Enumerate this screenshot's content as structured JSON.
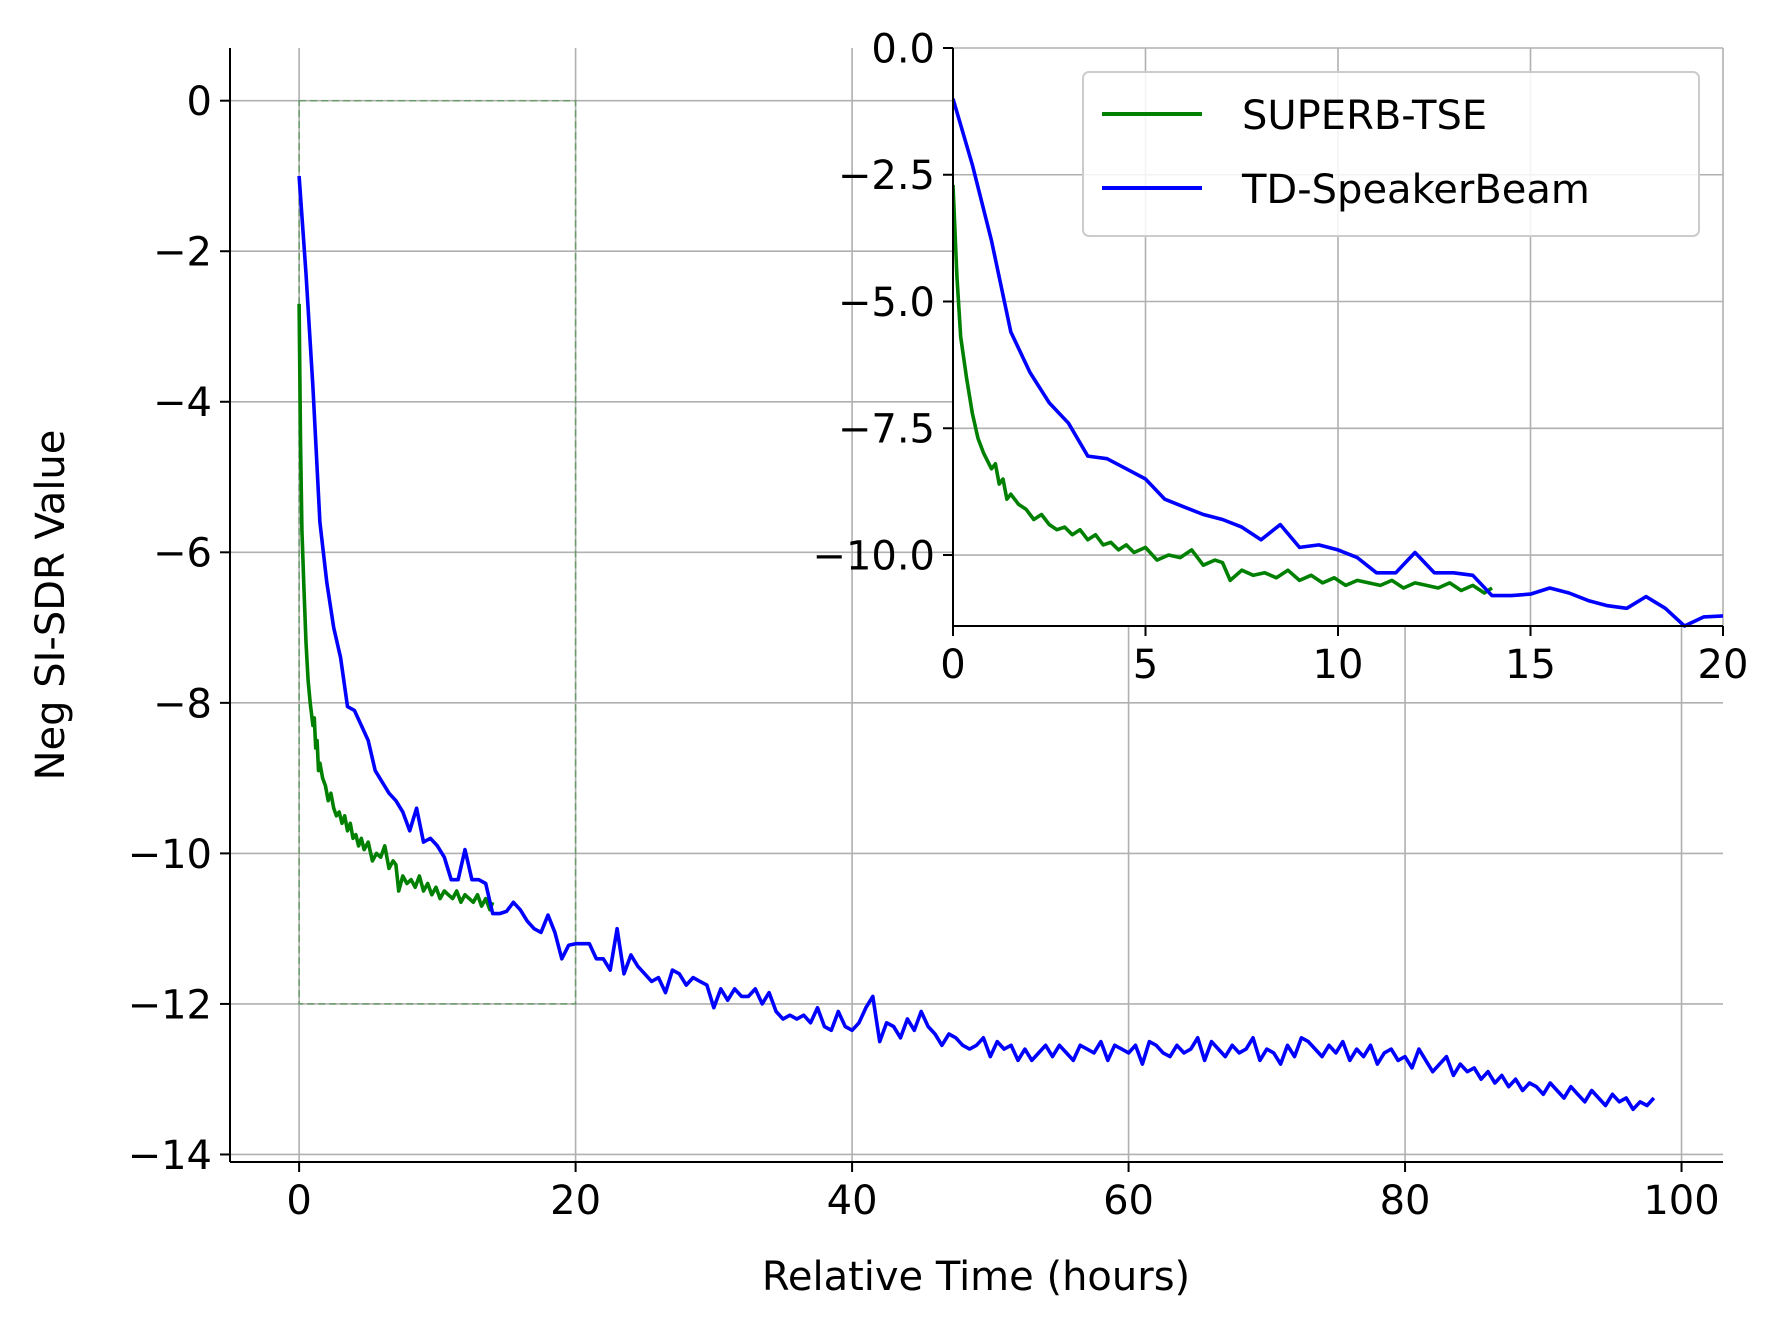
{
  "chart_data": [
    {
      "type": "line",
      "role": "main",
      "xlabel": "Relative Time (hours)",
      "ylabel": "Neg SI-SDR Value",
      "xlim": [
        -5,
        103
      ],
      "ylim": [
        -14.1,
        0.7
      ],
      "xticks": [
        0,
        20,
        40,
        60,
        80,
        100
      ],
      "yticks": [
        0,
        -2,
        -4,
        -6,
        -8,
        -10,
        -12,
        -14
      ],
      "xtick_labels": [
        "0",
        "20",
        "40",
        "60",
        "80",
        "100"
      ],
      "ytick_labels": [
        "0",
        "−2",
        "−4",
        "−6",
        "−8",
        "−10",
        "−12",
        "−14"
      ],
      "grid": true,
      "zoom_box": {
        "x": [
          0,
          20
        ],
        "y": [
          -12,
          0
        ]
      },
      "series": [
        {
          "name": "SUPERB-TSE",
          "color": "#008000",
          "x": [
            0,
            0.1,
            0.2,
            0.35,
            0.5,
            0.65,
            0.8,
            1.0,
            1.1,
            1.2,
            1.3,
            1.4,
            1.5,
            1.7,
            1.9,
            2.1,
            2.3,
            2.5,
            2.7,
            2.9,
            3.1,
            3.3,
            3.5,
            3.7,
            3.9,
            4.1,
            4.3,
            4.5,
            4.7,
            5.0,
            5.3,
            5.6,
            5.9,
            6.2,
            6.5,
            6.8,
            7.0,
            7.2,
            7.5,
            7.8,
            8.1,
            8.4,
            8.7,
            9.0,
            9.3,
            9.6,
            9.9,
            10.2,
            10.5,
            10.8,
            11.1,
            11.4,
            11.7,
            12.0,
            12.3,
            12.6,
            12.9,
            13.2,
            13.5,
            13.8,
            14.0
          ],
          "y": [
            -2.7,
            -4.5,
            -5.7,
            -6.5,
            -7.2,
            -7.7,
            -8.0,
            -8.3,
            -8.2,
            -8.6,
            -8.5,
            -8.9,
            -8.8,
            -9.0,
            -9.1,
            -9.3,
            -9.2,
            -9.4,
            -9.5,
            -9.45,
            -9.6,
            -9.5,
            -9.7,
            -9.6,
            -9.8,
            -9.75,
            -9.9,
            -9.8,
            -9.95,
            -9.85,
            -10.1,
            -10.0,
            -10.05,
            -9.9,
            -10.2,
            -10.1,
            -10.15,
            -10.5,
            -10.3,
            -10.4,
            -10.35,
            -10.45,
            -10.3,
            -10.5,
            -10.4,
            -10.55,
            -10.45,
            -10.6,
            -10.5,
            -10.55,
            -10.6,
            -10.5,
            -10.65,
            -10.55,
            -10.6,
            -10.65,
            -10.55,
            -10.7,
            -10.6,
            -10.75,
            -10.65
          ]
        },
        {
          "name": "TD-SpeakerBeam",
          "color": "#0000ff",
          "x": [
            0,
            0.5,
            1.0,
            1.5,
            2.0,
            2.5,
            3.0,
            3.5,
            4.0,
            4.5,
            5.0,
            5.5,
            6.0,
            6.5,
            7.0,
            7.5,
            8.0,
            8.5,
            9.0,
            9.5,
            10.0,
            10.5,
            11.0,
            11.5,
            12.0,
            12.5,
            13.0,
            13.5,
            14.0,
            14.5,
            15.0,
            15.5,
            16.0,
            16.5,
            17.0,
            17.5,
            18.0,
            18.5,
            19.0,
            19.5,
            20.0,
            20.5,
            21.0,
            21.5,
            22.0,
            22.5,
            23.0,
            23.5,
            24.0,
            24.5,
            25.0,
            25.5,
            26.0,
            26.5,
            27.0,
            27.5,
            28.0,
            28.5,
            29.0,
            29.5,
            30.0,
            30.5,
            31.0,
            31.5,
            32.0,
            32.5,
            33.0,
            33.5,
            34.0,
            34.5,
            35.0,
            35.5,
            36.0,
            36.5,
            37.0,
            37.5,
            38.0,
            38.5,
            39.0,
            39.5,
            40.0,
            40.5,
            41.0,
            41.5,
            42.0,
            42.5,
            43.0,
            43.5,
            44.0,
            44.5,
            45.0,
            45.5,
            46.0,
            46.5,
            47.0,
            47.5,
            48.0,
            48.5,
            49.0,
            49.5,
            50.0,
            50.5,
            51.0,
            51.5,
            52.0,
            52.5,
            53.0,
            53.5,
            54.0,
            54.5,
            55.0,
            55.5,
            56.0,
            56.5,
            57.0,
            57.5,
            58.0,
            58.5,
            59.0,
            59.5,
            60.0,
            60.5,
            61.0,
            61.5,
            62.0,
            62.5,
            63.0,
            63.5,
            64.0,
            64.5,
            65.0,
            65.5,
            66.0,
            66.5,
            67.0,
            67.5,
            68.0,
            68.5,
            69.0,
            69.5,
            70.0,
            70.5,
            71.0,
            71.5,
            72.0,
            72.5,
            73.0,
            73.5,
            74.0,
            74.5,
            75.0,
            75.5,
            76.0,
            76.5,
            77.0,
            77.5,
            78.0,
            78.5,
            79.0,
            79.5,
            80.0,
            80.5,
            81.0,
            81.5,
            82.0,
            82.5,
            83.0,
            83.5,
            84.0,
            84.5,
            85.0,
            85.5,
            86.0,
            86.5,
            87.0,
            87.5,
            88.0,
            88.5,
            89.0,
            89.5,
            90.0,
            90.5,
            91.0,
            91.5,
            92.0,
            92.5,
            93.0,
            93.5,
            94.0,
            94.5,
            95.0,
            95.5,
            96.0,
            96.5,
            97.0,
            97.5,
            98.0
          ],
          "y": [
            -1.0,
            -2.3,
            -3.8,
            -5.6,
            -6.4,
            -7.0,
            -7.4,
            -8.05,
            -8.1,
            -8.3,
            -8.5,
            -8.9,
            -9.05,
            -9.2,
            -9.3,
            -9.45,
            -9.7,
            -9.4,
            -9.85,
            -9.8,
            -9.9,
            -10.05,
            -10.35,
            -10.35,
            -9.95,
            -10.35,
            -10.35,
            -10.4,
            -10.8,
            -10.8,
            -10.77,
            -10.65,
            -10.75,
            -10.9,
            -11.0,
            -11.05,
            -10.82,
            -11.05,
            -11.4,
            -11.22,
            -11.2,
            -11.2,
            -11.2,
            -11.4,
            -11.4,
            -11.55,
            -11.0,
            -11.6,
            -11.35,
            -11.5,
            -11.6,
            -11.7,
            -11.65,
            -11.85,
            -11.55,
            -11.6,
            -11.75,
            -11.65,
            -11.7,
            -11.75,
            -12.05,
            -11.8,
            -11.95,
            -11.8,
            -11.9,
            -11.9,
            -11.8,
            -12.0,
            -11.85,
            -12.1,
            -12.2,
            -12.15,
            -12.2,
            -12.15,
            -12.25,
            -12.05,
            -12.3,
            -12.35,
            -12.1,
            -12.3,
            -12.35,
            -12.25,
            -12.05,
            -11.9,
            -12.5,
            -12.25,
            -12.3,
            -12.45,
            -12.2,
            -12.35,
            -12.1,
            -12.3,
            -12.4,
            -12.55,
            -12.4,
            -12.45,
            -12.55,
            -12.6,
            -12.55,
            -12.45,
            -12.7,
            -12.5,
            -12.6,
            -12.55,
            -12.75,
            -12.6,
            -12.75,
            -12.65,
            -12.55,
            -12.7,
            -12.55,
            -12.65,
            -12.75,
            -12.55,
            -12.6,
            -12.65,
            -12.5,
            -12.75,
            -12.55,
            -12.6,
            -12.65,
            -12.55,
            -12.8,
            -12.5,
            -12.55,
            -12.65,
            -12.7,
            -12.55,
            -12.65,
            -12.6,
            -12.45,
            -12.75,
            -12.5,
            -12.6,
            -12.7,
            -12.55,
            -12.65,
            -12.6,
            -12.45,
            -12.75,
            -12.6,
            -12.65,
            -12.8,
            -12.55,
            -12.7,
            -12.45,
            -12.5,
            -12.6,
            -12.7,
            -12.55,
            -12.65,
            -12.5,
            -12.75,
            -12.6,
            -12.7,
            -12.55,
            -12.8,
            -12.65,
            -12.6,
            -12.75,
            -12.7,
            -12.85,
            -12.6,
            -12.75,
            -12.9,
            -12.8,
            -12.7,
            -12.95,
            -12.8,
            -12.9,
            -12.85,
            -13.0,
            -12.9,
            -13.05,
            -12.95,
            -13.1,
            -13.0,
            -13.15,
            -13.05,
            -13.1,
            -13.2,
            -13.05,
            -13.15,
            -13.25,
            -13.1,
            -13.2,
            -13.3,
            -13.15,
            -13.25,
            -13.35,
            -13.2,
            -13.3,
            -13.25,
            -13.4,
            -13.3,
            -13.35,
            -13.25
          ]
        }
      ]
    },
    {
      "type": "line",
      "role": "inset",
      "xlim": [
        0,
        20
      ],
      "ylim": [
        -11.4,
        0
      ],
      "xticks": [
        0,
        5,
        10,
        15,
        20
      ],
      "yticks": [
        0,
        -2.5,
        -5.0,
        -7.5,
        -10.0
      ],
      "xtick_labels": [
        "0",
        "5",
        "10",
        "15",
        "20"
      ],
      "ytick_labels": [
        "0.0",
        "−2.5",
        "−5.0",
        "−7.5",
        "−10.0"
      ],
      "grid": true,
      "legend": {
        "position": "top-right",
        "entries": [
          {
            "label": "SUPERB-TSE",
            "color": "#008000"
          },
          {
            "label": "TD-SpeakerBeam",
            "color": "#0000ff"
          }
        ]
      },
      "series": [
        {
          "name": "SUPERB-TSE",
          "color": "#008000",
          "x": [
            0,
            0.1,
            0.2,
            0.35,
            0.5,
            0.65,
            0.8,
            1.0,
            1.1,
            1.2,
            1.3,
            1.4,
            1.5,
            1.7,
            1.9,
            2.1,
            2.3,
            2.5,
            2.7,
            2.9,
            3.1,
            3.3,
            3.5,
            3.7,
            3.9,
            4.1,
            4.3,
            4.5,
            4.7,
            5.0,
            5.3,
            5.6,
            5.9,
            6.2,
            6.5,
            6.8,
            7.0,
            7.2,
            7.5,
            7.8,
            8.1,
            8.4,
            8.7,
            9.0,
            9.3,
            9.6,
            9.9,
            10.2,
            10.5,
            10.8,
            11.1,
            11.4,
            11.7,
            12.0,
            12.3,
            12.6,
            12.9,
            13.2,
            13.5,
            13.8,
            14.0
          ],
          "y": [
            -2.7,
            -4.5,
            -5.7,
            -6.5,
            -7.2,
            -7.7,
            -8.0,
            -8.3,
            -8.2,
            -8.6,
            -8.5,
            -8.9,
            -8.8,
            -9.0,
            -9.1,
            -9.3,
            -9.2,
            -9.4,
            -9.5,
            -9.45,
            -9.6,
            -9.5,
            -9.7,
            -9.6,
            -9.8,
            -9.75,
            -9.9,
            -9.8,
            -9.95,
            -9.85,
            -10.1,
            -10.0,
            -10.05,
            -9.9,
            -10.2,
            -10.1,
            -10.15,
            -10.5,
            -10.3,
            -10.4,
            -10.35,
            -10.45,
            -10.3,
            -10.5,
            -10.4,
            -10.55,
            -10.45,
            -10.6,
            -10.5,
            -10.55,
            -10.6,
            -10.5,
            -10.65,
            -10.55,
            -10.6,
            -10.65,
            -10.55,
            -10.7,
            -10.6,
            -10.75,
            -10.65
          ]
        },
        {
          "name": "TD-SpeakerBeam",
          "color": "#0000ff",
          "x": [
            0,
            0.5,
            1.0,
            1.5,
            2.0,
            2.5,
            3.0,
            3.5,
            4.0,
            4.5,
            5.0,
            5.5,
            6.0,
            6.5,
            7.0,
            7.5,
            8.0,
            8.5,
            9.0,
            9.5,
            10.0,
            10.5,
            11.0,
            11.5,
            12.0,
            12.5,
            13.0,
            13.5,
            14.0,
            14.5,
            15.0,
            15.5,
            16.0,
            16.5,
            17.0,
            17.5,
            18.0,
            18.5,
            19.0,
            19.5,
            20.0
          ],
          "y": [
            -1.0,
            -2.3,
            -3.8,
            -5.6,
            -6.4,
            -7.0,
            -7.4,
            -8.05,
            -8.1,
            -8.3,
            -8.5,
            -8.9,
            -9.05,
            -9.2,
            -9.3,
            -9.45,
            -9.7,
            -9.4,
            -9.85,
            -9.8,
            -9.9,
            -10.05,
            -10.35,
            -10.35,
            -9.95,
            -10.35,
            -10.35,
            -10.4,
            -10.8,
            -10.8,
            -10.77,
            -10.65,
            -10.75,
            -10.9,
            -11.0,
            -11.05,
            -10.82,
            -11.05,
            -11.4,
            -11.22,
            -11.2
          ]
        }
      ]
    }
  ]
}
